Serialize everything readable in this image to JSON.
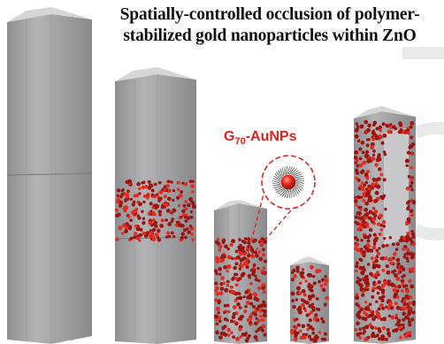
{
  "figure": {
    "title_line_1": "Spatially-controlled occlusion of polymer-",
    "title_line_2": "stabilized gold nanoparticles within ZnO",
    "np_label_main": "G",
    "np_label_sub": "70",
    "np_label_rest": "-AuNPs"
  },
  "colors": {
    "rod_face": "#a4a4a6",
    "rod_light": "#c2c2c4",
    "rod_dark": "#8d8d90",
    "rod_top": "#dadadb",
    "particle": "#9b1410",
    "particle_core": "#e52b1f",
    "label": "#e0201b",
    "watermark": "#e6e6e6"
  },
  "icons": {
    "nanoparticle": "gold-nanoparticle-with-polymer-shell-icon"
  }
}
